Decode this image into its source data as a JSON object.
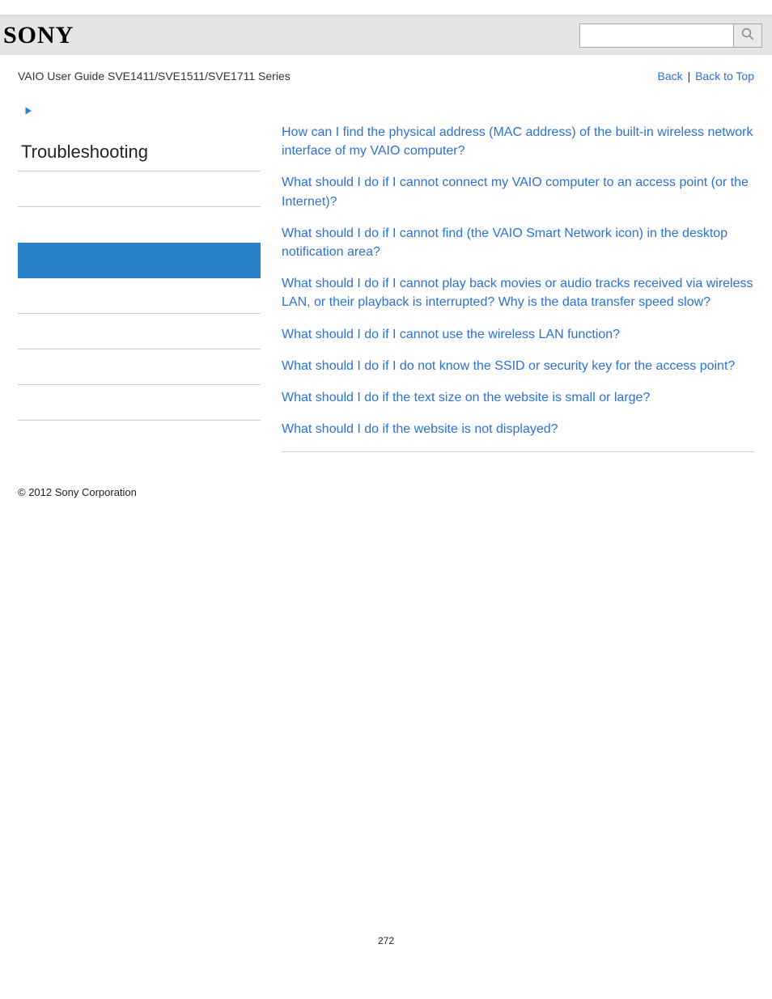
{
  "header": {
    "logo_text": "SONY",
    "search_placeholder": "",
    "search_value": ""
  },
  "subheader": {
    "guide_title": "VAIO User Guide SVE1411/SVE1511/SVE1711 Series",
    "back_label": "Back",
    "separator": "|",
    "top_label": "Back to Top"
  },
  "sidebar": {
    "title": "Troubleshooting",
    "items": [
      {
        "active": false,
        "no_border": false
      },
      {
        "active": false,
        "no_border": true
      },
      {
        "active": true,
        "no_border": true
      },
      {
        "active": false,
        "no_border": false
      },
      {
        "active": false,
        "no_border": false
      },
      {
        "active": false,
        "no_border": false
      },
      {
        "active": false,
        "no_border": false
      }
    ]
  },
  "questions": [
    "How can I find the physical address (MAC address) of the built-in wireless network interface of my VAIO computer?",
    "What should I do if I cannot connect my VAIO computer to an access point (or the Internet)?",
    "What should I do if I cannot find (the VAIO Smart Network icon) in the desktop notification area?",
    "What should I do if I cannot play back movies or audio tracks received via wireless LAN, or their playback is interrupted? Why is the data transfer speed slow?",
    "What should I do if I cannot use the wireless LAN function?",
    "What should I do if I do not know the SSID or security key for the access point?",
    "What should I do if the text size on the website is small or large?",
    "What should I do if the website is not displayed?"
  ],
  "footer": {
    "copyright": "© 2012 Sony Corporation"
  },
  "page_number": "272",
  "colors": {
    "link": "#2a72d4",
    "active_bg": "#2a81c8",
    "header_bg": "#e5e5e5",
    "border": "#c8c8c8"
  }
}
